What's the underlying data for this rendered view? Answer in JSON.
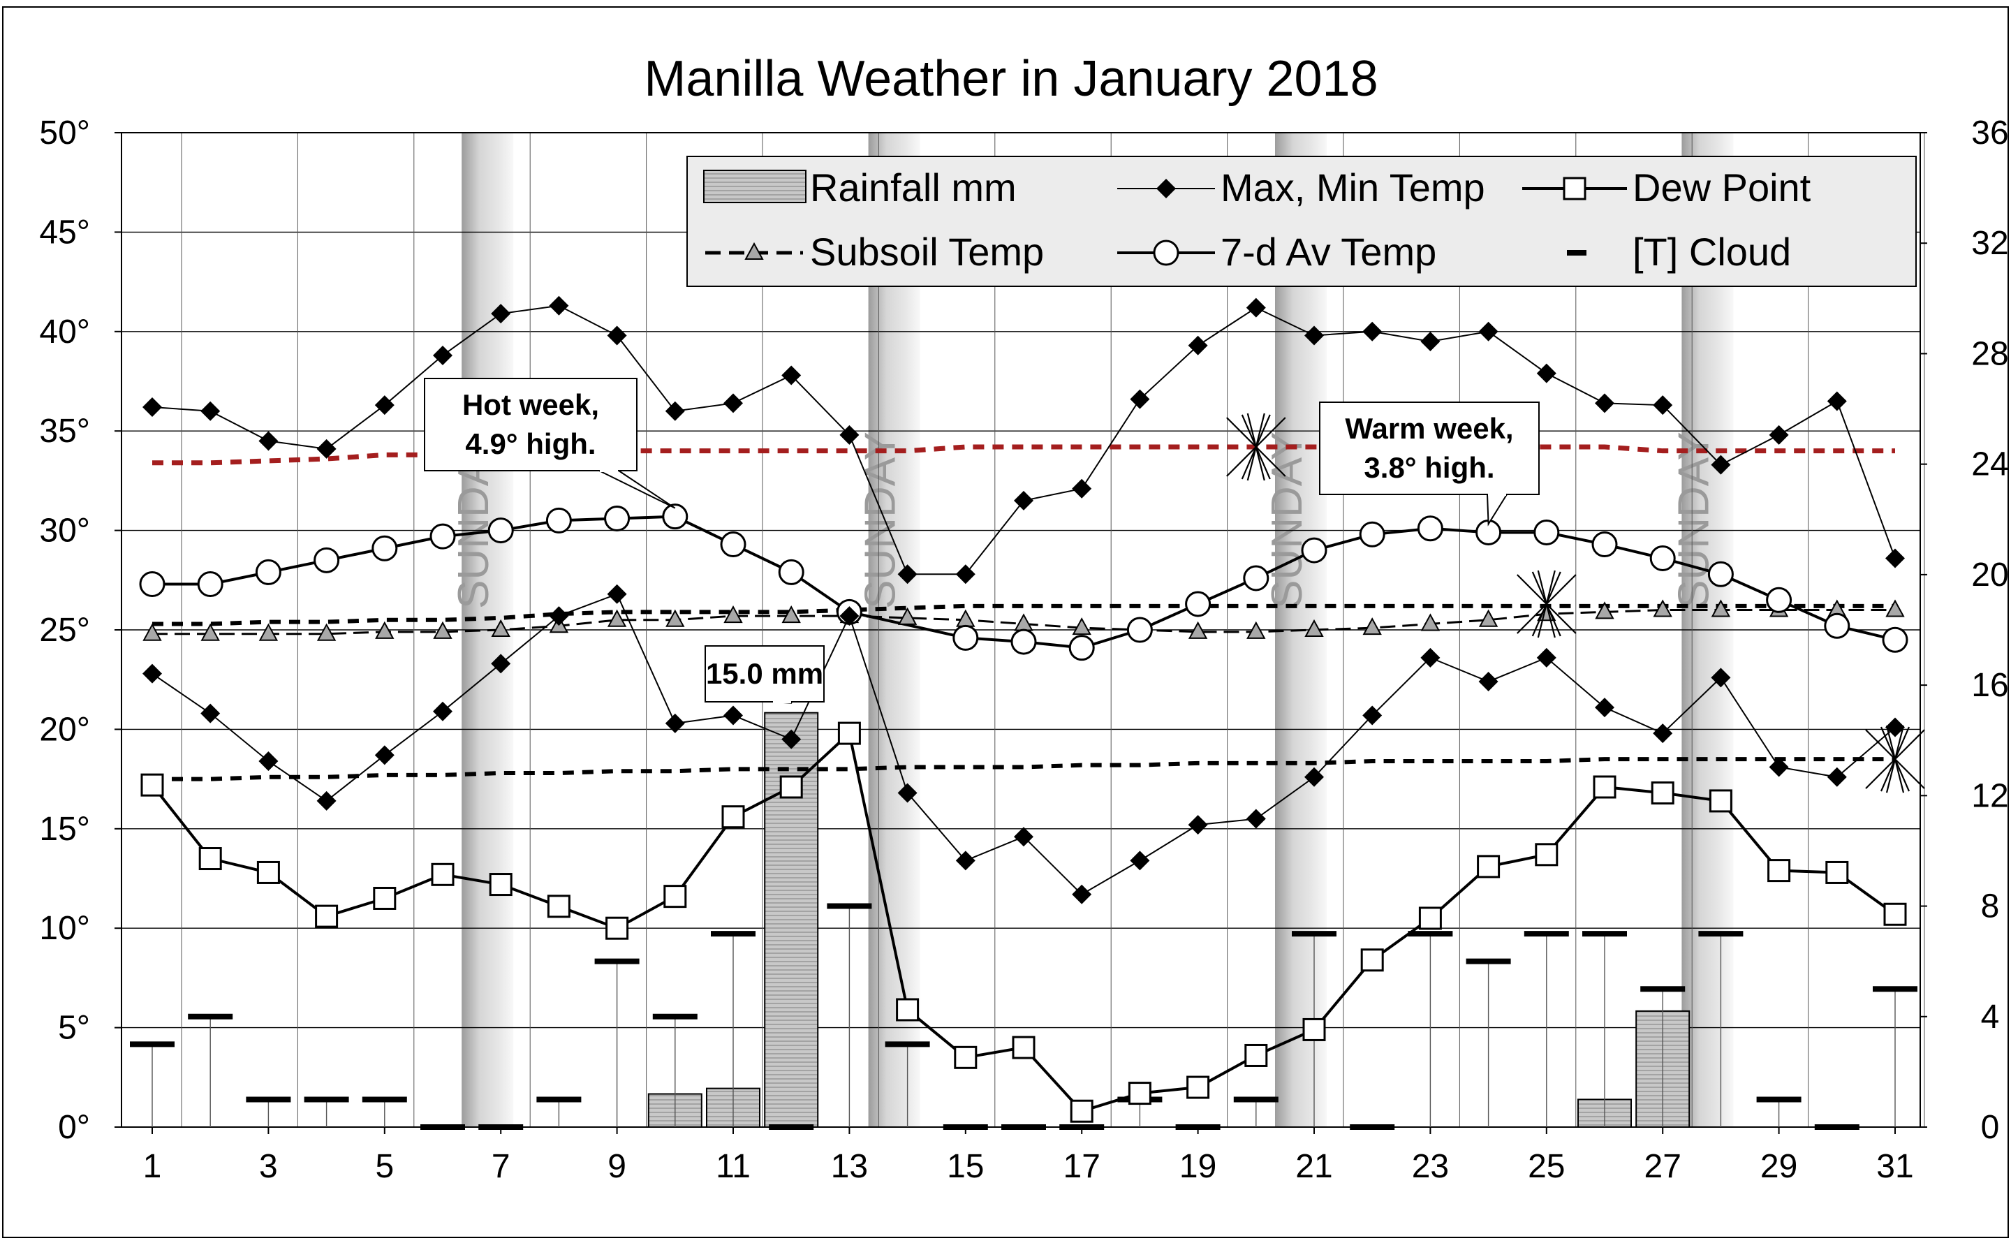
{
  "chart_data": {
    "type": "line",
    "title": "Manilla Weather in January 2018",
    "x": [
      1,
      2,
      3,
      4,
      5,
      6,
      7,
      8,
      9,
      10,
      11,
      12,
      13,
      14,
      15,
      16,
      17,
      18,
      19,
      20,
      21,
      22,
      23,
      24,
      25,
      26,
      27,
      28,
      29,
      30,
      31
    ],
    "x_tick_labels": [
      "1",
      "3",
      "5",
      "7",
      "9",
      "11",
      "13",
      "15",
      "17",
      "19",
      "21",
      "23",
      "25",
      "27",
      "29",
      "31"
    ],
    "y_left_tick_labels": [
      "0°",
      "5°",
      "10°",
      "15°",
      "20°",
      "25°",
      "30°",
      "35°",
      "40°",
      "45°",
      "50°"
    ],
    "y_right_tick_labels": [
      "0",
      "4",
      "8",
      "12",
      "16",
      "20",
      "24",
      "28",
      "32",
      "36"
    ],
    "ylim_left": [
      0,
      50
    ],
    "ylim_right": [
      0,
      36
    ],
    "grid": true,
    "sunday_days": [
      7,
      14,
      21,
      28
    ],
    "sunday_label": "SUNDAY",
    "legend": {
      "rainfall": "Rainfall mm",
      "maxmin": "Max, Min Temp",
      "dew": "Dew Point",
      "subsoil": "Subsoil Temp",
      "avg7": "7-d Av Temp",
      "cloud": "[T] Cloud"
    },
    "series": {
      "max_temp": [
        36.2,
        36.0,
        34.5,
        34.1,
        36.3,
        38.8,
        40.9,
        41.3,
        39.8,
        36.0,
        36.4,
        37.8,
        34.8,
        27.8,
        27.8,
        31.5,
        32.1,
        36.6,
        39.3,
        41.2,
        39.8,
        40.0,
        39.5,
        40.0,
        37.9,
        36.4,
        36.3,
        33.3,
        34.8,
        36.5,
        28.6
      ],
      "min_temp": [
        22.8,
        20.8,
        18.4,
        16.4,
        18.7,
        20.9,
        23.3,
        25.7,
        26.8,
        20.3,
        20.7,
        19.5,
        25.7,
        16.8,
        13.4,
        14.6,
        11.7,
        13.4,
        15.2,
        15.5,
        17.6,
        20.7,
        23.6,
        22.4,
        23.6,
        21.1,
        19.8,
        22.6,
        18.1,
        17.6,
        20.1
      ],
      "dew_point": [
        17.2,
        13.5,
        12.8,
        10.6,
        11.5,
        12.7,
        12.2,
        11.1,
        10.0,
        11.6,
        15.6,
        17.1,
        19.8,
        5.9,
        3.5,
        4.0,
        0.8,
        1.7,
        2.0,
        3.6,
        4.9,
        8.4,
        10.5,
        13.1,
        13.7,
        17.1,
        16.8,
        16.4,
        12.9,
        12.8,
        10.7
      ],
      "avg_7d": [
        27.3,
        27.3,
        27.9,
        28.5,
        29.1,
        29.7,
        30.0,
        30.5,
        30.6,
        30.7,
        29.3,
        27.9,
        25.9,
        null,
        24.6,
        24.4,
        24.1,
        25.0,
        26.3,
        27.6,
        29.0,
        29.8,
        30.1,
        29.9,
        29.9,
        29.3,
        28.6,
        27.8,
        26.5,
        25.2,
        24.5
      ],
      "subsoil_temp": [
        24.8,
        24.8,
        24.8,
        24.8,
        24.9,
        24.9,
        25.0,
        25.2,
        25.5,
        25.5,
        25.7,
        25.7,
        25.7,
        25.6,
        25.5,
        25.3,
        25.1,
        25.0,
        24.9,
        24.9,
        25.0,
        25.1,
        25.3,
        25.5,
        25.8,
        25.9,
        26.0,
        26.0,
        26.0,
        26.0,
        26.0
      ],
      "rainfall_mm": [
        0,
        0,
        0,
        0,
        0,
        0,
        0,
        0,
        0,
        1.2,
        1.4,
        15.0,
        0,
        0,
        0,
        0,
        0,
        0,
        0,
        0,
        0,
        0,
        0,
        0,
        0,
        1.0,
        4.2,
        0,
        0,
        0,
        0
      ],
      "cloud_right": [
        3,
        4,
        1,
        1,
        1,
        0,
        0,
        1,
        6,
        4,
        7,
        0,
        8,
        3,
        0,
        0,
        0,
        1,
        0,
        1,
        7,
        0,
        7,
        6,
        7,
        7,
        5,
        7,
        1,
        0,
        5
      ],
      "dash_top_upper": [
        33.4,
        33.4,
        33.5,
        33.6,
        33.8,
        33.8,
        33.9,
        33.9,
        34.0,
        34.0,
        34.0,
        34.0,
        34.0,
        34.0,
        34.2,
        34.2,
        34.2,
        34.2,
        34.2,
        34.2,
        34.2,
        34.2,
        34.2,
        34.2,
        34.2,
        34.2,
        34.0,
        34.0,
        34.0,
        34.0,
        34.0
      ],
      "dash_top_mid": [
        25.3,
        25.3,
        25.4,
        25.4,
        25.5,
        25.5,
        25.6,
        25.8,
        25.9,
        25.9,
        25.9,
        25.9,
        26.0,
        26.1,
        26.2,
        26.2,
        26.2,
        26.2,
        26.2,
        26.2,
        26.2,
        26.2,
        26.2,
        26.2,
        26.2,
        26.2,
        26.2,
        26.2,
        26.2,
        26.2,
        26.2
      ],
      "dash_bottom": [
        17.5,
        17.5,
        17.6,
        17.6,
        17.7,
        17.7,
        17.8,
        17.8,
        17.9,
        17.9,
        18.0,
        18.0,
        18.0,
        18.1,
        18.1,
        18.1,
        18.2,
        18.2,
        18.3,
        18.3,
        18.3,
        18.4,
        18.4,
        18.4,
        18.4,
        18.5,
        18.5,
        18.5,
        18.5,
        18.5,
        18.5
      ]
    },
    "cloud_markers": [
      {
        "day": 20,
        "value": 34.2
      },
      {
        "day": 25,
        "value": 26.3
      },
      {
        "day": 31,
        "value": 18.5
      }
    ],
    "annotations": [
      {
        "text_lines": [
          "Hot week,",
          "4.9° high."
        ],
        "target_day": 10,
        "target_value": 30.7
      },
      {
        "text_lines": [
          "Warm week,",
          "3.8° high."
        ],
        "target_day": 24,
        "target_value": 29.9
      },
      {
        "text_lines": [
          "15.0 mm"
        ],
        "target_day": 12,
        "target_value": 20.9
      }
    ]
  }
}
